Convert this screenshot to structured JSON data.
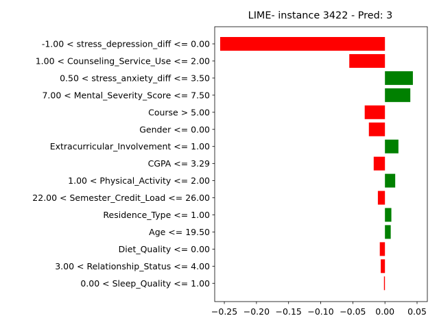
{
  "chart_data": {
    "type": "bar",
    "orientation": "horizontal",
    "title": "LIME- instance 3422 - Pred: 3",
    "xlabel": "",
    "ylabel": "",
    "xlim": [
      -0.265,
      0.066
    ],
    "xticks": [
      -0.25,
      -0.2,
      -0.15,
      -0.1,
      -0.05,
      0.0,
      0.05
    ],
    "xtick_labels": [
      "−0.25",
      "−0.20",
      "−0.15",
      "−0.10",
      "−0.05",
      "0.00",
      "0.05"
    ],
    "grid": false,
    "positive_color": "#008000",
    "negative_color": "#ff0000",
    "categories": [
      "-1.00 < stress_depression_diff <= 0.00",
      "1.00 < Counseling_Service_Use <= 2.00",
      "0.50 < stress_anxiety_diff <= 3.50",
      "7.00 < Mental_Severity_Score <= 7.50",
      "Course > 5.00",
      "Gender <= 0.00",
      "Extracurricular_Involvement <= 1.00",
      "CGPA <= 3.29",
      "1.00 < Physical_Activity <= 2.00",
      "22.00 < Semester_Credit_Load <= 26.00",
      "Residence_Type <= 1.00",
      "Age <= 19.50",
      "Diet_Quality <= 0.00",
      "3.00 < Relationship_Status <= 4.00",
      "0.00 < Sleep_Quality <= 1.00"
    ],
    "values": [
      -0.2565,
      -0.0555,
      0.0435,
      0.0395,
      -0.0315,
      -0.025,
      0.021,
      -0.0175,
      0.016,
      -0.011,
      0.01,
      0.009,
      -0.008,
      -0.0065,
      -0.0015
    ]
  }
}
